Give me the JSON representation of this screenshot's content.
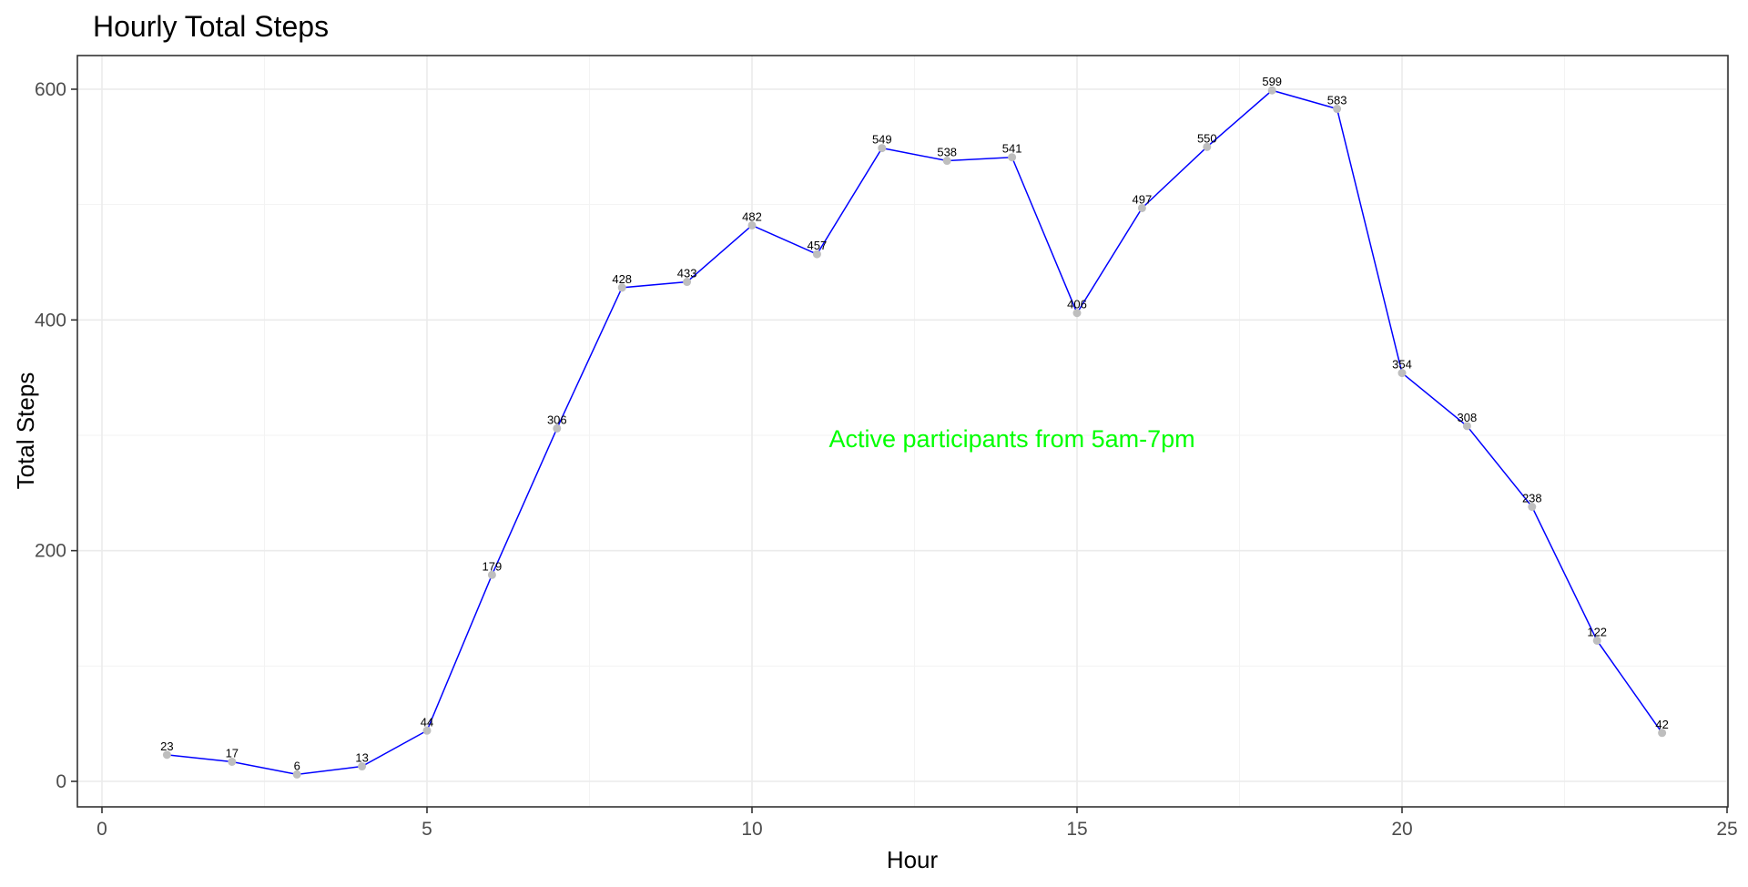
{
  "chart_data": {
    "type": "line",
    "title": "Hourly Total Steps",
    "xlabel": "Hour",
    "ylabel": "Total Steps",
    "xlim": [
      0,
      25
    ],
    "ylim": [
      0,
      600
    ],
    "x_ticks": [
      0,
      5,
      10,
      15,
      20,
      25
    ],
    "y_ticks": [
      0,
      200,
      400,
      600
    ],
    "grid": true,
    "legend": "none",
    "line_color": "#0000ff",
    "point_color": "#bebebe",
    "annotation": {
      "text": "Active participants from 5am-7pm",
      "color": "#00ff00",
      "x": 14,
      "y": 297
    },
    "x": [
      1,
      2,
      3,
      4,
      5,
      6,
      7,
      8,
      9,
      10,
      11,
      12,
      13,
      14,
      15,
      16,
      17,
      18,
      19,
      20,
      21,
      22,
      23,
      24
    ],
    "y": [
      23,
      17,
      6,
      13,
      44,
      179,
      306,
      428,
      433,
      482,
      457,
      549,
      538,
      541,
      406,
      497,
      550,
      599,
      583,
      354,
      308,
      238,
      122,
      42
    ]
  }
}
